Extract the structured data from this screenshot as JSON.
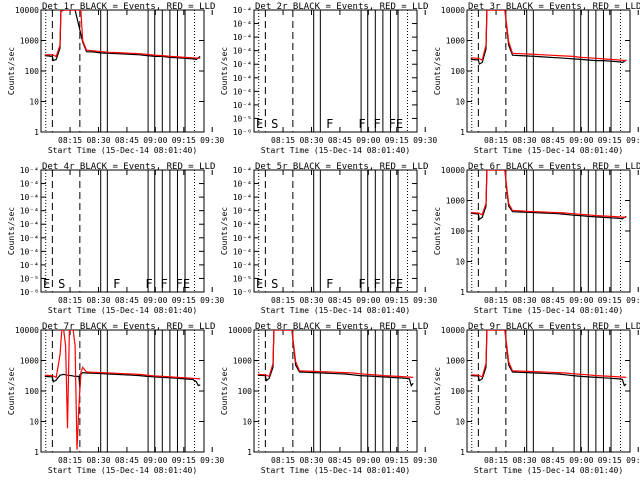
{
  "panel_titles": [
    "Det 1r BLACK = Events, RED = LLD",
    "Det 2r BLACK = Events, RED = LLD",
    "Det 3r BLACK = Events, RED = LLD",
    "Det 4r BLACK = Events, RED = LLD",
    "Det 5r BLACK = Events, RED = LLD",
    "Det 6r BLACK = Events, RED = LLD",
    "Det 7r BLACK = Events, RED = LLD",
    "Det 8r BLACK = Events, RED = LLD",
    "Det 9r BLACK = Events, RED = LLD"
  ],
  "ylabel": "Counts/sec",
  "xlabel": "Start Time (15-Dec-14 08:01:40)",
  "time_ticks": [
    "08:15",
    "08:30",
    "08:45",
    "09:00",
    "09:15",
    "09:30"
  ],
  "colors": {
    "events": "#000000",
    "lld": "#ff0000"
  },
  "chart_data": [
    {
      "type": "line",
      "panel": "Det 1r",
      "ylim": [
        1,
        10000
      ],
      "yscale": "log",
      "yticks": [
        "1",
        "10",
        "100",
        "1000",
        "10000"
      ],
      "series": [
        {
          "name": "BLACK = Events",
          "x": [
            0,
            4,
            4.5,
            6,
            8,
            8.5,
            10,
            11,
            14,
            16,
            20,
            22,
            26,
            30,
            34,
            38,
            42,
            46,
            50,
            54,
            58,
            62,
            66,
            70,
            74,
            78,
            80,
            81,
            82
          ],
          "y": [
            320,
            300,
            220,
            240,
            560,
            9000,
            10000,
            10000,
            10000,
            10000,
            900,
            430,
            420,
            390,
            380,
            370,
            360,
            350,
            340,
            320,
            300,
            300,
            280,
            270,
            260,
            250,
            240,
            270,
            300
          ]
        },
        {
          "name": "RED = LLD",
          "x": [
            0,
            4,
            6,
            8,
            8.5,
            10,
            14,
            16,
            19,
            20,
            22,
            26,
            30,
            34,
            38,
            42,
            46,
            50,
            54,
            58,
            62,
            66,
            70,
            74,
            78,
            82
          ],
          "y": [
            340,
            340,
            300,
            700,
            10000,
            10000,
            10000,
            10000,
            10000,
            1000,
            480,
            460,
            430,
            410,
            400,
            390,
            380,
            370,
            350,
            330,
            320,
            300,
            290,
            280,
            270,
            260
          ]
        }
      ]
    },
    {
      "type": "line",
      "panel": "Det 2r",
      "ylim": [
        1e-06,
        0.0001
      ],
      "yscale": "log",
      "yticks": [
        "10⁻⁶",
        "10⁻⁵",
        "10⁻⁴",
        "10⁻⁴",
        "10⁻⁴",
        "10⁻⁴",
        "10⁻⁴",
        "10⁻⁴",
        "10⁻⁴",
        "10⁻⁴"
      ],
      "mode_letters": [
        "E",
        "S",
        "F",
        "F",
        "F",
        "FE"
      ],
      "series": []
    },
    {
      "type": "line",
      "panel": "Det 3r",
      "ylim": [
        1,
        10000
      ],
      "yscale": "log",
      "yticks": [
        "1",
        "10",
        "100",
        "1000",
        "10000"
      ],
      "series": [
        {
          "name": "BLACK = Events",
          "x": [
            0,
            4,
            4.5,
            6,
            8,
            8.5,
            10,
            14,
            18,
            19,
            20,
            22,
            26,
            30,
            34,
            38,
            42,
            46,
            50,
            54,
            58,
            62,
            66,
            70,
            74,
            78,
            80,
            81,
            82
          ],
          "y": [
            240,
            230,
            170,
            190,
            520,
            10000,
            10000,
            10000,
            10000,
            2500,
            700,
            330,
            320,
            310,
            300,
            290,
            280,
            270,
            260,
            250,
            240,
            230,
            220,
            220,
            210,
            200,
            190,
            210,
            230
          ]
        },
        {
          "name": "RED = LLD",
          "x": [
            0,
            4,
            6,
            8,
            8.5,
            10,
            14,
            18,
            19,
            20,
            22,
            26,
            30,
            34,
            38,
            42,
            46,
            50,
            54,
            58,
            62,
            66,
            70,
            74,
            78,
            82
          ],
          "y": [
            270,
            260,
            230,
            700,
            10000,
            10000,
            10000,
            10000,
            3000,
            900,
            380,
            370,
            360,
            350,
            340,
            330,
            320,
            310,
            300,
            280,
            270,
            260,
            250,
            240,
            230,
            220
          ]
        }
      ]
    },
    {
      "type": "line",
      "panel": "Det 4r",
      "ylim": [
        1e-06,
        0.0001
      ],
      "yscale": "log",
      "yticks": [
        "10⁻⁶",
        "10⁻⁵",
        "10⁻⁴",
        "10⁻⁴",
        "10⁻⁴",
        "10⁻⁴",
        "10⁻⁴",
        "10⁻⁴",
        "10⁻⁴",
        "10⁻⁴"
      ],
      "mode_letters": [
        "E",
        "S",
        "F",
        "F",
        "F",
        "FE"
      ],
      "series": []
    },
    {
      "type": "line",
      "panel": "Det 5r",
      "ylim": [
        1e-06,
        0.0001
      ],
      "yscale": "log",
      "yticks": [
        "10⁻⁶",
        "10⁻⁵",
        "10⁻⁴",
        "10⁻⁴",
        "10⁻⁴",
        "10⁻⁴",
        "10⁻⁴",
        "10⁻⁴",
        "10⁻⁴",
        "10⁻⁴"
      ],
      "mode_letters": [
        "E",
        "S",
        "F",
        "F",
        "F",
        "FE"
      ],
      "series": []
    },
    {
      "type": "line",
      "panel": "Det 6r",
      "ylim": [
        1,
        10000
      ],
      "yscale": "log",
      "yticks": [
        "1",
        "10",
        "100",
        "1000",
        "10000"
      ],
      "series": [
        {
          "name": "BLACK = Events",
          "x": [
            0,
            4,
            4.5,
            6,
            8,
            8.5,
            10,
            14,
            18,
            19,
            20,
            22,
            26,
            30,
            34,
            38,
            42,
            46,
            50,
            54,
            58,
            62,
            66,
            70,
            74,
            78,
            80,
            81,
            82
          ],
          "y": [
            380,
            360,
            240,
            280,
            640,
            10000,
            10000,
            10000,
            10000,
            2200,
            650,
            430,
            420,
            410,
            400,
            390,
            380,
            370,
            350,
            330,
            320,
            300,
            290,
            280,
            270,
            260,
            250,
            280,
            300
          ]
        },
        {
          "name": "RED = LLD",
          "x": [
            0,
            4,
            6,
            8,
            8.5,
            10,
            14,
            18,
            19,
            20,
            22,
            26,
            30,
            34,
            38,
            42,
            46,
            50,
            54,
            58,
            62,
            66,
            70,
            74,
            78,
            82
          ],
          "y": [
            400,
            390,
            340,
            800,
            10000,
            10000,
            10000,
            10000,
            2600,
            800,
            470,
            460,
            440,
            430,
            420,
            410,
            400,
            390,
            370,
            350,
            340,
            320,
            310,
            300,
            290,
            280
          ]
        }
      ]
    },
    {
      "type": "line",
      "panel": "Det 7r",
      "ylim": [
        1,
        10000
      ],
      "yscale": "log",
      "yticks": [
        "1",
        "10",
        "100",
        "1000",
        "10000"
      ],
      "series": [
        {
          "name": "BLACK = Events",
          "x": [
            0,
            4,
            4.5,
            6,
            8,
            10,
            12,
            14,
            16,
            18,
            18.5,
            19,
            20,
            22,
            26,
            30,
            34,
            38,
            42,
            46,
            50,
            54,
            58,
            62,
            66,
            70,
            74,
            78,
            80,
            81,
            82
          ],
          "y": [
            300,
            290,
            200,
            230,
            330,
            350,
            330,
            320,
            300,
            300,
            120,
            350,
            400,
            390,
            380,
            370,
            360,
            350,
            340,
            330,
            320,
            300,
            290,
            280,
            270,
            260,
            250,
            240,
            200,
            150,
            160
          ]
        },
        {
          "name": "RED = LLD",
          "x": [
            0,
            4,
            6,
            8,
            9,
            10,
            11,
            12,
            13,
            14,
            15,
            16,
            17,
            18,
            19,
            20,
            22,
            26,
            30,
            34,
            38,
            42,
            46,
            50,
            54,
            58,
            62,
            66,
            70,
            74,
            78,
            82
          ],
          "y": [
            330,
            320,
            280,
            1500,
            10000,
            10000,
            3000,
            6,
            10000,
            10000,
            10000,
            3000,
            1.2,
            30,
            400,
            600,
            420,
            410,
            400,
            390,
            380,
            370,
            360,
            350,
            330,
            310,
            300,
            290,
            280,
            270,
            260,
            250
          ]
        }
      ]
    },
    {
      "type": "line",
      "panel": "Det 8r",
      "ylim": [
        1,
        10000
      ],
      "yscale": "log",
      "yticks": [
        "1",
        "10",
        "100",
        "1000",
        "10000"
      ],
      "series": [
        {
          "name": "BLACK = Events",
          "x": [
            0,
            4,
            4.5,
            6,
            8,
            8.5,
            10,
            14,
            18,
            19,
            20,
            22,
            26,
            30,
            34,
            38,
            42,
            46,
            50,
            54,
            58,
            62,
            66,
            70,
            74,
            78,
            80,
            81,
            82
          ],
          "y": [
            330,
            320,
            220,
            260,
            600,
            10000,
            10000,
            10000,
            10000,
            2500,
            700,
            420,
            410,
            400,
            390,
            380,
            370,
            360,
            340,
            320,
            310,
            300,
            290,
            280,
            270,
            260,
            250,
            150,
            180
          ]
        },
        {
          "name": "RED = LLD",
          "x": [
            0,
            4,
            6,
            8,
            8.5,
            10,
            14,
            18,
            19,
            20,
            22,
            26,
            30,
            34,
            38,
            42,
            46,
            50,
            54,
            58,
            62,
            66,
            70,
            74,
            78,
            82
          ],
          "y": [
            350,
            340,
            300,
            800,
            10000,
            10000,
            10000,
            10000,
            3000,
            900,
            460,
            450,
            440,
            430,
            420,
            410,
            400,
            390,
            370,
            350,
            340,
            320,
            310,
            300,
            290,
            280
          ]
        }
      ]
    },
    {
      "type": "line",
      "panel": "Det 9r",
      "ylim": [
        1,
        10000
      ],
      "yscale": "log",
      "yticks": [
        "1",
        "10",
        "100",
        "1000",
        "10000"
      ],
      "series": [
        {
          "name": "BLACK = Events",
          "x": [
            0,
            4,
            4.5,
            6,
            8,
            8.5,
            10,
            14,
            18,
            19,
            20,
            22,
            26,
            30,
            34,
            38,
            42,
            46,
            50,
            54,
            58,
            62,
            66,
            70,
            74,
            78,
            80,
            81,
            82
          ],
          "y": [
            320,
            310,
            220,
            250,
            600,
            10000,
            10000,
            10000,
            10000,
            2400,
            700,
            420,
            410,
            400,
            390,
            380,
            370,
            360,
            340,
            320,
            300,
            290,
            280,
            270,
            260,
            250,
            240,
            150,
            170
          ]
        },
        {
          "name": "RED = LLD",
          "x": [
            0,
            4,
            6,
            8,
            8.5,
            10,
            14,
            18,
            19,
            20,
            22,
            26,
            30,
            34,
            38,
            42,
            46,
            50,
            54,
            58,
            62,
            66,
            70,
            74,
            78,
            82
          ],
          "y": [
            340,
            330,
            290,
            800,
            10000,
            10000,
            10000,
            10000,
            3000,
            900,
            460,
            450,
            440,
            430,
            420,
            410,
            400,
            390,
            370,
            350,
            340,
            320,
            310,
            300,
            290,
            280
          ]
        }
      ]
    }
  ]
}
